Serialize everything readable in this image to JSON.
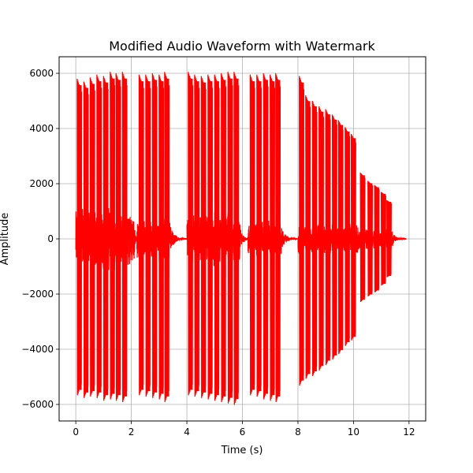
{
  "chart_data": {
    "type": "line",
    "title": "Modified Audio Waveform with Watermark",
    "xlabel": "Time (s)",
    "ylabel": "Amplitude",
    "xlim": [
      -0.6,
      12.6
    ],
    "ylim": [
      -6600,
      6600
    ],
    "xticks": [
      0,
      2,
      4,
      6,
      8,
      10,
      12
    ],
    "yticks": [
      -6000,
      -4000,
      -2000,
      0,
      2000,
      4000,
      6000
    ],
    "xtick_labels": [
      "0",
      "2",
      "4",
      "6",
      "8",
      "10",
      "12"
    ],
    "ytick_labels": [
      "−6000",
      "−4000",
      "−2000",
      "0",
      "2000",
      "4000",
      "6000"
    ],
    "grid": true,
    "color": "#ff0000",
    "series": [
      {
        "pulses": [
          {
            "t": 0.05,
            "peak": 5800,
            "trough": -5700
          },
          {
            "t": 0.29,
            "peak": 5700,
            "trough": -5800
          },
          {
            "t": 0.52,
            "peak": 5850,
            "trough": -5750
          },
          {
            "t": 0.76,
            "peak": 5950,
            "trough": -5800
          },
          {
            "t": 1.0,
            "peak": 5900,
            "trough": -5900
          },
          {
            "t": 1.24,
            "peak": 6050,
            "trough": -5850
          },
          {
            "t": 1.45,
            "peak": 6000,
            "trough": -5900
          },
          {
            "t": 1.68,
            "peak": 6050,
            "trough": -5950
          },
          {
            "t": 2.28,
            "peak": 5950,
            "trough": -5700
          },
          {
            "t": 2.52,
            "peak": 5950,
            "trough": -5750
          },
          {
            "t": 2.76,
            "peak": 6000,
            "trough": -5800
          },
          {
            "t": 3.0,
            "peak": 5950,
            "trough": -5850
          },
          {
            "t": 3.2,
            "peak": 6050,
            "trough": -5950
          },
          {
            "t": 4.05,
            "peak": 6050,
            "trough": -5700
          },
          {
            "t": 4.28,
            "peak": 5950,
            "trough": -5750
          },
          {
            "t": 4.52,
            "peak": 5900,
            "trough": -5800
          },
          {
            "t": 4.76,
            "peak": 5950,
            "trough": -5850
          },
          {
            "t": 5.0,
            "peak": 5950,
            "trough": -5900
          },
          {
            "t": 5.24,
            "peak": 6000,
            "trough": -5950
          },
          {
            "t": 5.48,
            "peak": 6050,
            "trough": -6000
          },
          {
            "t": 5.7,
            "peak": 6050,
            "trough": -6050
          },
          {
            "t": 6.28,
            "peak": 5950,
            "trough": -5700
          },
          {
            "t": 6.52,
            "peak": 5950,
            "trough": -5750
          },
          {
            "t": 6.76,
            "peak": 6000,
            "trough": -5850
          },
          {
            "t": 7.0,
            "peak": 5950,
            "trough": -5900
          },
          {
            "t": 7.2,
            "peak": 6000,
            "trough": -5950
          },
          {
            "t": 8.05,
            "peak": 5900,
            "trough": -5350
          },
          {
            "t": 8.28,
            "peak": 5200,
            "trough": -5100
          },
          {
            "t": 8.52,
            "peak": 5000,
            "trough": -5000
          },
          {
            "t": 8.76,
            "peak": 4800,
            "trough": -4800
          },
          {
            "t": 9.0,
            "peak": 4700,
            "trough": -4600
          },
          {
            "t": 9.24,
            "peak": 4500,
            "trough": -4400
          },
          {
            "t": 9.46,
            "peak": 4300,
            "trough": -4200
          },
          {
            "t": 9.7,
            "peak": 4050,
            "trough": -3900
          },
          {
            "t": 9.92,
            "peak": 3800,
            "trough": -3700
          },
          {
            "t": 10.25,
            "peak": 2400,
            "trough": -2300
          },
          {
            "t": 10.52,
            "peak": 2100,
            "trough": -2100
          },
          {
            "t": 10.76,
            "peak": 1950,
            "trough": -1950
          },
          {
            "t": 11.0,
            "peak": 1700,
            "trough": -1700
          },
          {
            "t": 11.2,
            "peak": 1400,
            "trough": -1400
          }
        ],
        "segments": [
          {
            "start": 0.0,
            "end": 2.1,
            "noise_amplitude": 1200,
            "tail_end": 2.25
          },
          {
            "start": 2.2,
            "end": 3.4,
            "noise_amplitude": 800,
            "tail_end": 4.0
          },
          {
            "start": 4.0,
            "end": 5.9,
            "noise_amplitude": 1000,
            "tail_end": 6.25
          },
          {
            "start": 6.2,
            "end": 7.4,
            "noise_amplitude": 700,
            "tail_end": 8.0
          },
          {
            "start": 8.0,
            "end": 10.2,
            "noise_amplitude": 600,
            "tail_end": 10.2
          },
          {
            "start": 10.2,
            "end": 11.4,
            "noise_amplitude": 400,
            "tail_end": 11.9
          }
        ]
      }
    ]
  }
}
